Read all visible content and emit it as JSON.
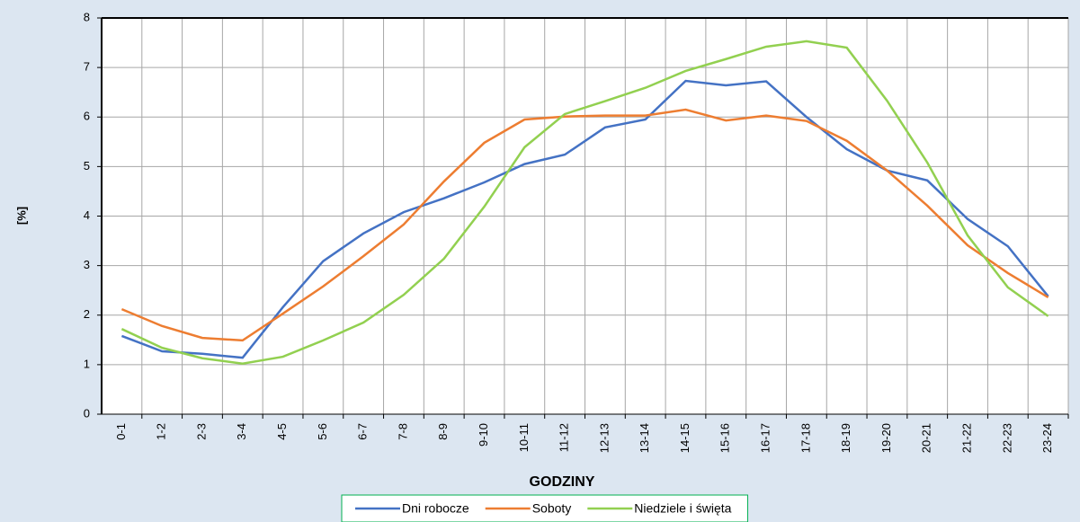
{
  "chart_data": {
    "type": "line",
    "x_label": "GODZINY",
    "y_label": "[%]",
    "categories": [
      "0-1",
      "1-2",
      "2-3",
      "3-4",
      "4-5",
      "5-6",
      "6-7",
      "7-8",
      "8-9",
      "9-10",
      "10-11",
      "11-12",
      "12-13",
      "13-14",
      "14-15",
      "15-16",
      "16-17",
      "17-18",
      "18-19",
      "19-20",
      "20-21",
      "21-22",
      "22-23",
      "23-24"
    ],
    "series": [
      {
        "name": "Dni robocze",
        "color": "#4472c4",
        "values": [
          1.58,
          1.27,
          1.22,
          1.14,
          2.16,
          3.09,
          3.65,
          4.08,
          4.36,
          4.68,
          5.05,
          5.24,
          5.79,
          5.95,
          6.73,
          6.64,
          6.72,
          6.0,
          5.35,
          4.92,
          4.72,
          3.94,
          3.39,
          2.38
        ]
      },
      {
        "name": "Soboty",
        "color": "#ed7d31",
        "values": [
          2.12,
          1.78,
          1.54,
          1.49,
          2.03,
          2.58,
          3.19,
          3.83,
          4.7,
          5.48,
          5.95,
          6.01,
          6.03,
          6.03,
          6.15,
          5.93,
          6.03,
          5.92,
          5.52,
          4.92,
          4.21,
          3.41,
          2.85,
          2.36
        ]
      },
      {
        "name": "Niedziele i święta",
        "color": "#92d050",
        "values": [
          1.72,
          1.34,
          1.13,
          1.02,
          1.16,
          1.49,
          1.85,
          2.41,
          3.14,
          4.19,
          5.39,
          6.06,
          6.32,
          6.59,
          6.93,
          7.17,
          7.42,
          7.53,
          7.4,
          6.33,
          5.08,
          3.61,
          2.56,
          1.98
        ]
      }
    ],
    "ylim": [
      0,
      8
    ],
    "yticks": [
      0,
      1,
      2,
      3,
      4,
      5,
      6,
      7,
      8
    ],
    "grid": true,
    "legend": "bottom"
  }
}
